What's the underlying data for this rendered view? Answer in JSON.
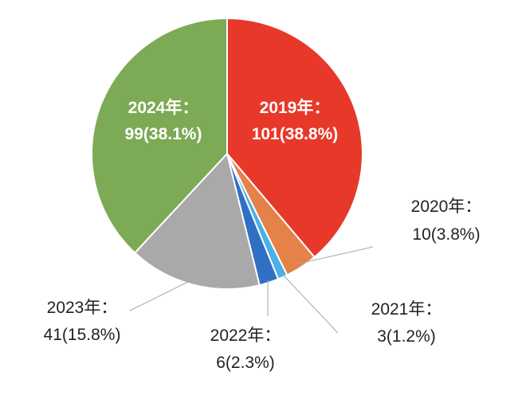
{
  "chart_data": {
    "type": "pie",
    "slices": [
      {
        "label": "2019年：",
        "value": 101,
        "value_label": "101(38.8%)",
        "color": "#e8382a",
        "label_position": "inside"
      },
      {
        "label": "2020年：",
        "value": 10,
        "value_label": "10(3.8%)",
        "color": "#e4824a",
        "label_position": "outside"
      },
      {
        "label": "2021年：",
        "value": 3,
        "value_label": "3(1.2%)",
        "color": "#4ab0e6",
        "label_position": "outside"
      },
      {
        "label": "2022年：",
        "value": 6,
        "value_label": "6(2.3%)",
        "color": "#2f6fc4",
        "label_position": "outside"
      },
      {
        "label": "2023年：",
        "value": 41,
        "value_label": "41(15.8%)",
        "color": "#a9a9a9",
        "label_position": "outside"
      },
      {
        "label": "2024年：",
        "value": 99,
        "value_label": "99(38.1%)",
        "color": "#7daa55",
        "label_position": "inside"
      }
    ],
    "start": "top",
    "direction": "clockwise",
    "legend": "none"
  }
}
